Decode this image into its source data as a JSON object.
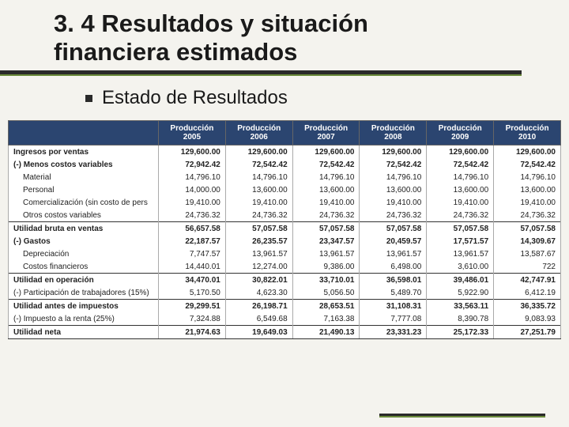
{
  "title_line1": "3. 4 Resultados y situación",
  "title_line2": "financiera estimados",
  "subtitle": "Estado de Resultados",
  "colors": {
    "header_bg": "#2b4570",
    "header_fg": "#ffffff",
    "page_bg": "#f4f3ee",
    "rule_dark": "#2a2a2a",
    "rule_green": "#6a8a3a"
  },
  "columns": [
    "Producción 2005",
    "Producción 2006",
    "Producción 2007",
    "Producción 2008",
    "Producción 2009",
    "Producción 2010"
  ],
  "rows": [
    {
      "label": "Ingresos por ventas",
      "bold": true,
      "top": true,
      "vals": [
        "129,600.00",
        "129,600.00",
        "129,600.00",
        "129,600.00",
        "129,600.00",
        "129,600.00"
      ]
    },
    {
      "label": "(-) Menos costos variables",
      "bold": true,
      "vals": [
        "72,942.42",
        "72,542.42",
        "72,542.42",
        "72,542.42",
        "72,542.42",
        "72,542.42"
      ]
    },
    {
      "label": "Material",
      "indent": true,
      "vals": [
        "14,796.10",
        "14,796.10",
        "14,796.10",
        "14,796.10",
        "14,796.10",
        "14,796.10"
      ]
    },
    {
      "label": "Personal",
      "indent": true,
      "vals": [
        "14,000.00",
        "13,600.00",
        "13,600.00",
        "13,600.00",
        "13,600.00",
        "13,600.00"
      ]
    },
    {
      "label": "Comercialización (sin costo de pers",
      "indent": true,
      "vals": [
        "19,410.00",
        "19,410.00",
        "19,410.00",
        "19,410.00",
        "19,410.00",
        "19,410.00"
      ]
    },
    {
      "label": "Otros costos variables",
      "indent": true,
      "vals": [
        "24,736.32",
        "24,736.32",
        "24,736.32",
        "24,736.32",
        "24,736.32",
        "24,736.32"
      ]
    },
    {
      "label": "Utilidad bruta en ventas",
      "bold": true,
      "top": true,
      "vals": [
        "56,657.58",
        "57,057.58",
        "57,057.58",
        "57,057.58",
        "57,057.58",
        "57,057.58"
      ]
    },
    {
      "label": "(-) Gastos",
      "bold": true,
      "vals": [
        "22,187.57",
        "26,235.57",
        "23,347.57",
        "20,459.57",
        "17,571.57",
        "14,309.67"
      ]
    },
    {
      "label": "Depreciación",
      "indent": true,
      "vals": [
        "7,747.57",
        "13,961.57",
        "13,961.57",
        "13,961.57",
        "13,961.57",
        "13,587.67"
      ]
    },
    {
      "label": "Costos financieros",
      "indent": true,
      "vals": [
        "14,440.01",
        "12,274.00",
        "9,386.00",
        "6,498.00",
        "3,610.00",
        "722"
      ]
    },
    {
      "label": "Utilidad en operación",
      "bold": true,
      "top": true,
      "vals": [
        "34,470.01",
        "30,822.01",
        "33,710.01",
        "36,598.01",
        "39,486.01",
        "42,747.91"
      ]
    },
    {
      "label": "(-) Participación de trabajadores (15%)",
      "vals": [
        "5,170.50",
        "4,623.30",
        "5,056.50",
        "5,489.70",
        "5,922.90",
        "6,412.19"
      ]
    },
    {
      "label": "Utilidad antes de impuestos",
      "bold": true,
      "top": true,
      "vals": [
        "29,299.51",
        "26,198.71",
        "28,653.51",
        "31,108.31",
        "33,563.11",
        "36,335.72"
      ]
    },
    {
      "label": "(-) Impuesto a la renta (25%)",
      "vals": [
        "7,324.88",
        "6,549.68",
        "7,163.38",
        "7,777.08",
        "8,390.78",
        "9,083.93"
      ]
    },
    {
      "label": "Utilidad neta",
      "bold": true,
      "top": true,
      "last": true,
      "vals": [
        "21,974.63",
        "19,649.03",
        "21,490.13",
        "23,331.23",
        "25,172.33",
        "27,251.79"
      ]
    }
  ]
}
